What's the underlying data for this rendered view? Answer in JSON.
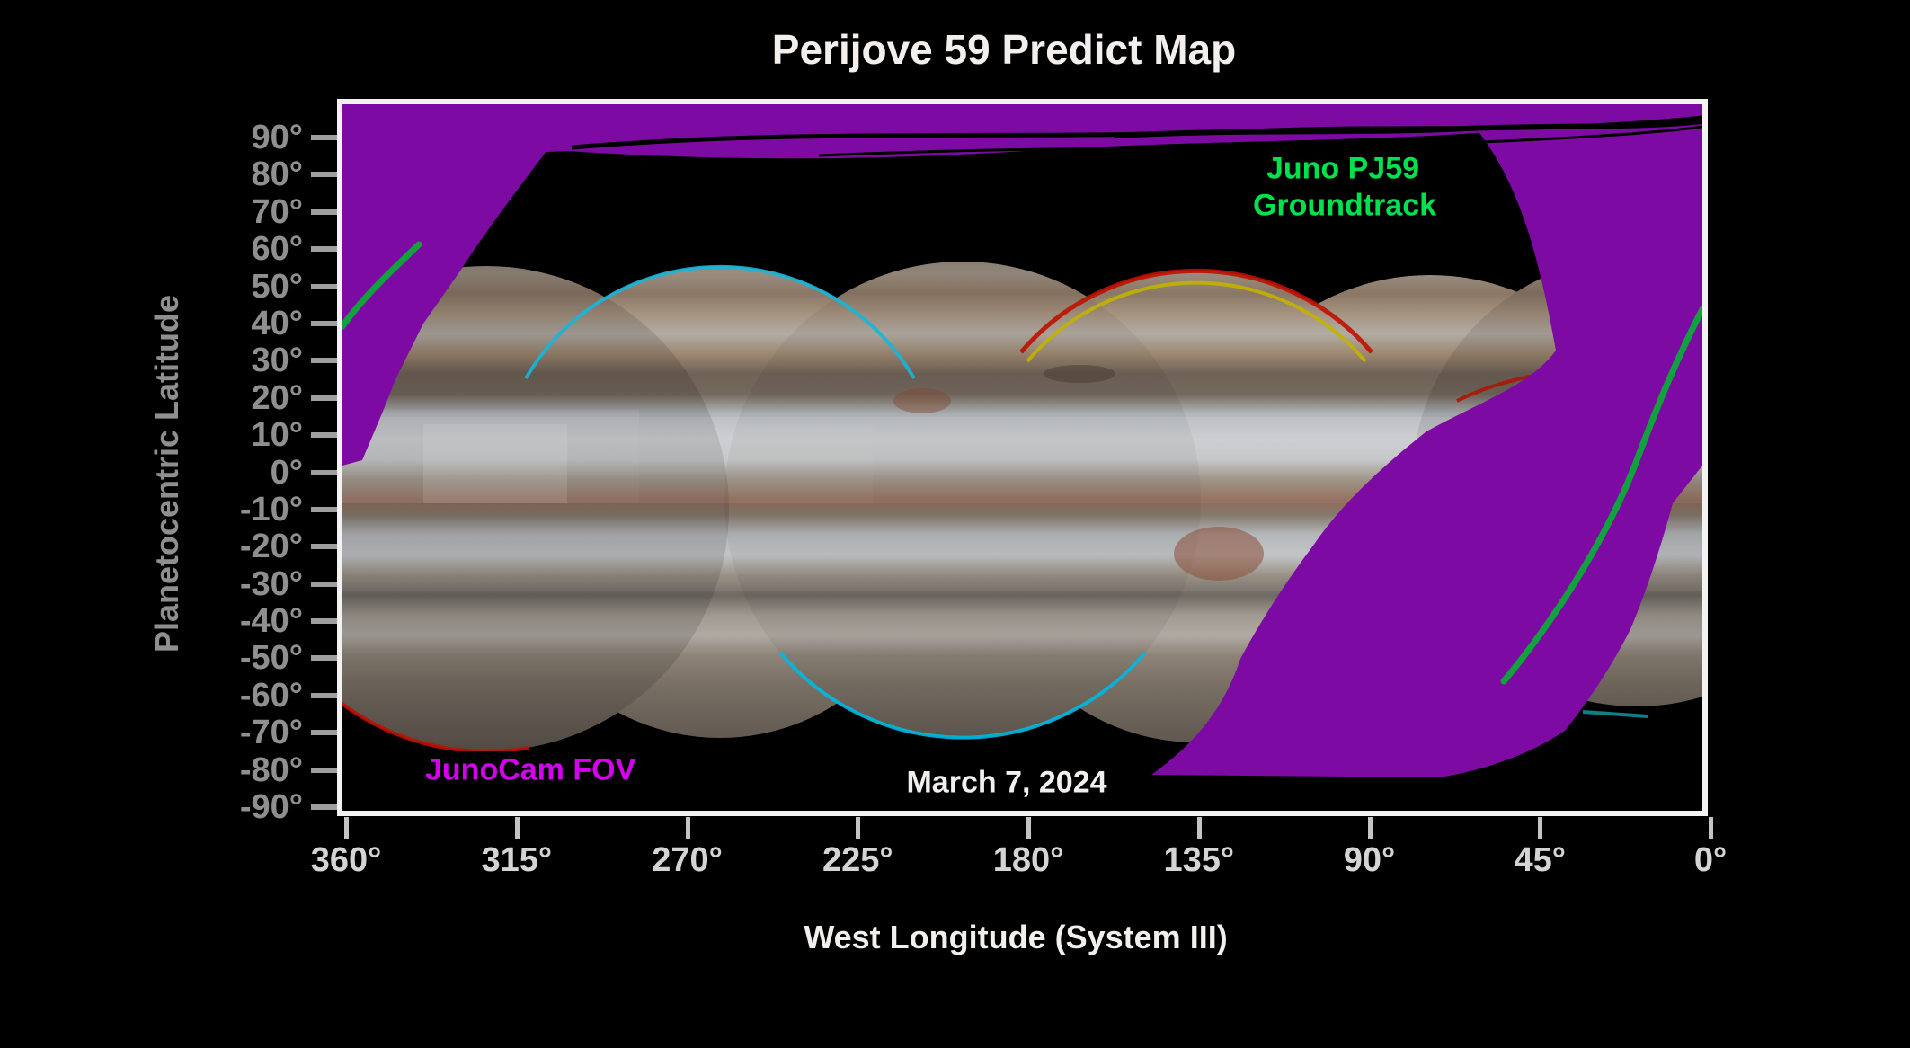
{
  "title": "Perijove 59 Predict Map",
  "axes": {
    "y": {
      "label": "Planetocentric Latitude",
      "ticks": [
        "90°",
        "80°",
        "70°",
        "60°",
        "50°",
        "40°",
        "30°",
        "20°",
        "10°",
        "0°",
        "-10°",
        "-20°",
        "-30°",
        "-40°",
        "-50°",
        "-60°",
        "-70°",
        "-80°",
        "-90°"
      ]
    },
    "x": {
      "label": "West Longitude (System III)",
      "ticks": [
        "360°",
        "315°",
        "270°",
        "225°",
        "180°",
        "135°",
        "90°",
        "45°",
        "0°"
      ]
    }
  },
  "annotations": {
    "groundtrack_line1": "Juno PJ59",
    "groundtrack_line2": "Groundtrack",
    "fov": "JunoCam FOV",
    "date": "March 7, 2024"
  },
  "colors": {
    "background": "#000000",
    "frame": "#f2f2f2",
    "title_text": "#f3efec",
    "y_axis_text": "#8f8f8f",
    "x_axis_text": "#d4d4d4",
    "groundtrack_line": "#0fa23d",
    "groundtrack_label": "#00e24d",
    "junocam_fov": "#7d0ba3",
    "fov_label": "#d400ee",
    "date_label": "#f3efec"
  },
  "chart_data": {
    "type": "line",
    "title": "Perijove 59 Predict Map",
    "xlabel": "West Longitude (System III)",
    "ylabel": "Planetocentric Latitude",
    "xlim": [
      360,
      0
    ],
    "ylim": [
      -90,
      90
    ],
    "x_ticks_deg": [
      360,
      315,
      270,
      225,
      180,
      135,
      90,
      45,
      0
    ],
    "y_ticks_deg": [
      90,
      80,
      70,
      60,
      50,
      40,
      30,
      20,
      10,
      0,
      -10,
      -20,
      -30,
      -40,
      -50,
      -60,
      -70,
      -80,
      -90
    ],
    "grid": false,
    "legend_position": "inside-top-right",
    "series": [
      {
        "name": "Juno PJ59 Groundtrack (inbound segment, upper left)",
        "color": "#0fa23d",
        "points_lon_lat": [
          [
            340,
            61
          ],
          [
            346,
            56
          ],
          [
            352,
            50
          ],
          [
            357,
            44
          ],
          [
            360,
            40
          ]
        ]
      },
      {
        "name": "Juno PJ59 Groundtrack (main segment, right side)",
        "color": "#0fa23d",
        "points_lon_lat": [
          [
            0,
            43
          ],
          [
            8,
            30
          ],
          [
            18,
            1
          ],
          [
            30,
            -25
          ],
          [
            41,
            -41
          ],
          [
            53,
            -56
          ]
        ]
      }
    ],
    "overlays": [
      {
        "name": "JunoCam FOV",
        "color": "#7d0ba3",
        "description": "Purple shaded coverage: thin band along the north edge crossed by wavy black streaks, wedge at upper-left near 360-330W / 60-90N, and a broad swath sweeping from 0-20W at high northern latitudes down to roughly 50-130W near -80 latitude"
      },
      {
        "name": "Jupiter basemap mosaic",
        "color": "#a89a8a",
        "description": "Gray-tan banded cylindrical JunoCam mosaic footprints (large overlapping circular blobs) covering mid-latitudes, with thin red/yellow/cyan registration fringes on footprint edges"
      }
    ],
    "date_annotation": "March 7, 2024"
  }
}
